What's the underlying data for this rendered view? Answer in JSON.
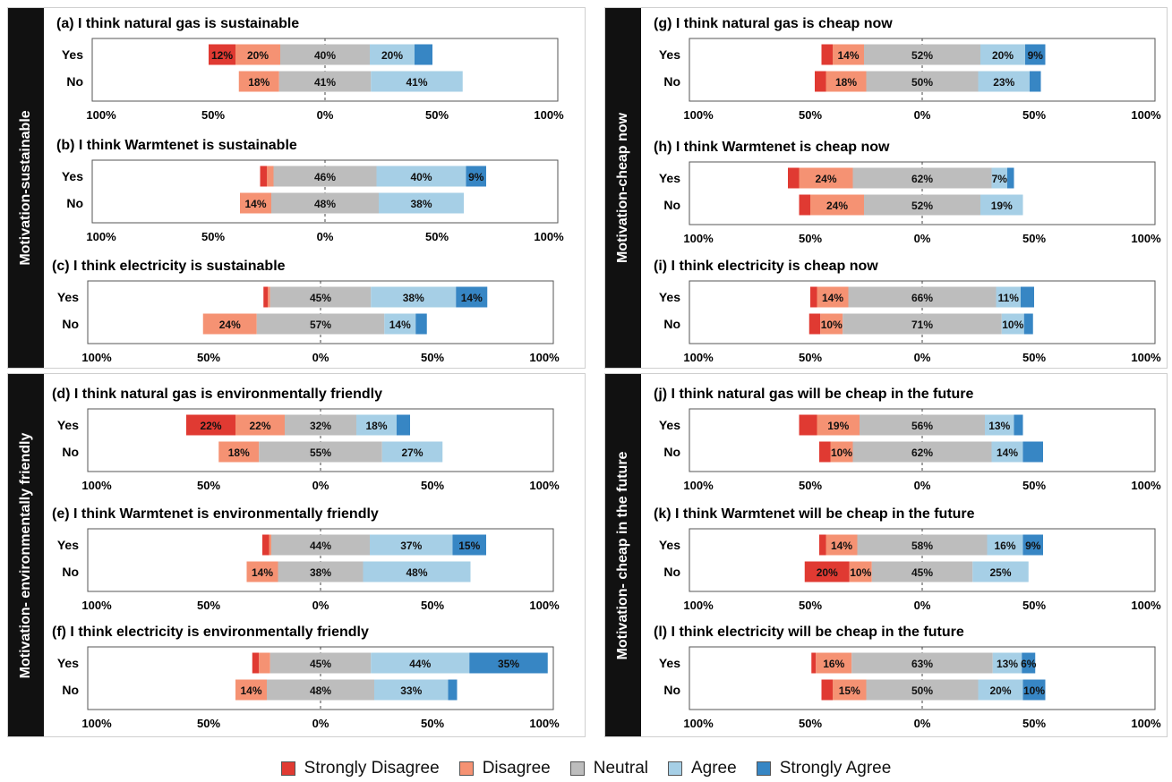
{
  "legend": [
    {
      "label": "Strongly Disagree",
      "color": "#e03a32"
    },
    {
      "label": "Disagree",
      "color": "#f59273"
    },
    {
      "label": "Neutral",
      "color": "#bdbdbd"
    },
    {
      "label": "Agree",
      "color": "#a6cfe6"
    },
    {
      "label": "Strongly Agree",
      "color": "#3786c4"
    }
  ],
  "sections": [
    {
      "label": "Motivation-sustainable"
    },
    {
      "label": "Motivation- environmentally friendly"
    },
    {
      "label": "Motivation-cheap now"
    },
    {
      "label": "Motivation- cheap in the future"
    }
  ],
  "chart_data": [
    {
      "id": "a",
      "type": "bar",
      "title": "(a) I think natural gas is sustainable",
      "categories": [
        "Yes",
        "No"
      ],
      "xlim": [
        -100,
        100
      ],
      "ticks": [
        "100%",
        "50%",
        "0%",
        "50%",
        "100%"
      ],
      "series": [
        {
          "name": "Strongly Disagree",
          "values": [
            12,
            0
          ],
          "labels": [
            "12%",
            ""
          ]
        },
        {
          "name": "Disagree",
          "values": [
            20,
            18
          ],
          "labels": [
            "20%",
            "18%"
          ]
        },
        {
          "name": "Neutral",
          "values": [
            40,
            41
          ],
          "labels": [
            "40%",
            "41%"
          ]
        },
        {
          "name": "Agree",
          "values": [
            20,
            41
          ],
          "labels": [
            "20%",
            "41%"
          ]
        },
        {
          "name": "Strongly Agree",
          "values": [
            8,
            0
          ],
          "labels": [
            "",
            ""
          ]
        }
      ]
    },
    {
      "id": "b",
      "type": "bar",
      "title": "(b) I think Warmtenet is sustainable",
      "categories": [
        "Yes",
        "No"
      ],
      "xlim": [
        -100,
        100
      ],
      "ticks": [
        "100%",
        "50%",
        "0%",
        "50%",
        "100%"
      ],
      "series": [
        {
          "name": "Strongly Disagree",
          "values": [
            3,
            0
          ],
          "labels": [
            "",
            ""
          ]
        },
        {
          "name": "Disagree",
          "values": [
            3,
            14
          ],
          "labels": [
            "",
            "14%"
          ]
        },
        {
          "name": "Neutral",
          "values": [
            46,
            48
          ],
          "labels": [
            "46%",
            "48%"
          ]
        },
        {
          "name": "Agree",
          "values": [
            40,
            38
          ],
          "labels": [
            "40%",
            "38%"
          ]
        },
        {
          "name": "Strongly Agree",
          "values": [
            9,
            0
          ],
          "labels": [
            "9%",
            ""
          ]
        }
      ]
    },
    {
      "id": "c",
      "type": "bar",
      "title": "(c) I think electricity is sustainable",
      "categories": [
        "Yes",
        "No"
      ],
      "xlim": [
        -100,
        100
      ],
      "ticks": [
        "100%",
        "50%",
        "0%",
        "50%",
        "100%"
      ],
      "series": [
        {
          "name": "Strongly Disagree",
          "values": [
            2,
            0
          ],
          "labels": [
            "",
            ""
          ]
        },
        {
          "name": "Disagree",
          "values": [
            1,
            24
          ],
          "labels": [
            "",
            "24%"
          ]
        },
        {
          "name": "Neutral",
          "values": [
            45,
            57
          ],
          "labels": [
            "45%",
            "57%"
          ]
        },
        {
          "name": "Agree",
          "values": [
            38,
            14
          ],
          "labels": [
            "38%",
            "14%"
          ]
        },
        {
          "name": "Strongly Agree",
          "values": [
            14,
            5
          ],
          "labels": [
            "14%",
            ""
          ]
        }
      ]
    },
    {
      "id": "d",
      "type": "bar",
      "title": "(d) I think natural gas is environmentally friendly",
      "categories": [
        "Yes",
        "No"
      ],
      "xlim": [
        -100,
        100
      ],
      "ticks": [
        "100%",
        "50%",
        "0%",
        "50%",
        "100%"
      ],
      "series": [
        {
          "name": "Strongly Disagree",
          "values": [
            22,
            0
          ],
          "labels": [
            "22%",
            ""
          ]
        },
        {
          "name": "Disagree",
          "values": [
            22,
            18
          ],
          "labels": [
            "22%",
            "18%"
          ]
        },
        {
          "name": "Neutral",
          "values": [
            32,
            55
          ],
          "labels": [
            "32%",
            "55%"
          ]
        },
        {
          "name": "Agree",
          "values": [
            18,
            27
          ],
          "labels": [
            "18%",
            "27%"
          ]
        },
        {
          "name": "Strongly Agree",
          "values": [
            6,
            0
          ],
          "labels": [
            "",
            ""
          ]
        }
      ]
    },
    {
      "id": "e",
      "type": "bar",
      "title": "(e) I think Warmtenet is environmentally friendly",
      "categories": [
        "Yes",
        "No"
      ],
      "xlim": [
        -100,
        100
      ],
      "ticks": [
        "100%",
        "50%",
        "0%",
        "50%",
        "100%"
      ],
      "series": [
        {
          "name": "Strongly Disagree",
          "values": [
            3,
            0
          ],
          "labels": [
            "",
            ""
          ]
        },
        {
          "name": "Disagree",
          "values": [
            1,
            14
          ],
          "labels": [
            "",
            "14%"
          ]
        },
        {
          "name": "Neutral",
          "values": [
            44,
            38
          ],
          "labels": [
            "44%",
            "38%"
          ]
        },
        {
          "name": "Agree",
          "values": [
            37,
            48
          ],
          "labels": [
            "37%",
            "48%"
          ]
        },
        {
          "name": "Strongly Agree",
          "values": [
            15,
            0
          ],
          "labels": [
            "15%",
            ""
          ]
        }
      ]
    },
    {
      "id": "f",
      "type": "bar",
      "title": "(f) I think electricity is environmentally friendly",
      "categories": [
        "Yes",
        "No"
      ],
      "xlim": [
        -100,
        100
      ],
      "ticks": [
        "100%",
        "50%",
        "0%",
        "50%",
        "100%"
      ],
      "series": [
        {
          "name": "Strongly Disagree",
          "values": [
            3,
            0
          ],
          "labels": [
            "",
            ""
          ]
        },
        {
          "name": "Disagree",
          "values": [
            5,
            14
          ],
          "labels": [
            "",
            "14%"
          ]
        },
        {
          "name": "Neutral",
          "values": [
            45,
            48
          ],
          "labels": [
            "45%",
            "48%"
          ]
        },
        {
          "name": "Agree",
          "values": [
            44,
            33
          ],
          "labels": [
            "44%",
            "33%"
          ]
        },
        {
          "name": "Strongly Agree",
          "values": [
            35,
            4
          ],
          "labels": [
            "35%",
            ""
          ]
        }
      ]
    },
    {
      "id": "g",
      "type": "bar",
      "title": "(g) I think natural gas is cheap now",
      "categories": [
        "Yes",
        "No"
      ],
      "xlim": [
        -100,
        100
      ],
      "ticks": [
        "100%",
        "50%",
        "0%",
        "50%",
        "100%"
      ],
      "series": [
        {
          "name": "Strongly Disagree",
          "values": [
            5,
            5
          ],
          "labels": [
            "",
            ""
          ]
        },
        {
          "name": "Disagree",
          "values": [
            14,
            18
          ],
          "labels": [
            "14%",
            "18%"
          ]
        },
        {
          "name": "Neutral",
          "values": [
            52,
            50
          ],
          "labels": [
            "52%",
            "50%"
          ]
        },
        {
          "name": "Agree",
          "values": [
            20,
            23
          ],
          "labels": [
            "20%",
            "23%"
          ]
        },
        {
          "name": "Strongly Agree",
          "values": [
            9,
            5
          ],
          "labels": [
            "9%",
            ""
          ]
        }
      ]
    },
    {
      "id": "h",
      "type": "bar",
      "title": "(h) I think Warmtenet is cheap now",
      "categories": [
        "Yes",
        "No"
      ],
      "xlim": [
        -100,
        100
      ],
      "ticks": [
        "100%",
        "50%",
        "0%",
        "50%",
        "100%"
      ],
      "series": [
        {
          "name": "Strongly Disagree",
          "values": [
            5,
            5
          ],
          "labels": [
            "",
            ""
          ]
        },
        {
          "name": "Disagree",
          "values": [
            24,
            24
          ],
          "labels": [
            "24%",
            "24%"
          ]
        },
        {
          "name": "Neutral",
          "values": [
            62,
            52
          ],
          "labels": [
            "62%",
            "52%"
          ]
        },
        {
          "name": "Agree",
          "values": [
            7,
            19
          ],
          "labels": [
            "7%",
            "19%"
          ]
        },
        {
          "name": "Strongly Agree",
          "values": [
            3,
            0
          ],
          "labels": [
            "",
            ""
          ]
        }
      ]
    },
    {
      "id": "i",
      "type": "bar",
      "title": "(i) I think electricity is cheap now",
      "categories": [
        "Yes",
        "No"
      ],
      "xlim": [
        -100,
        100
      ],
      "ticks": [
        "100%",
        "50%",
        "0%",
        "50%",
        "100%"
      ],
      "series": [
        {
          "name": "Strongly Disagree",
          "values": [
            3,
            5
          ],
          "labels": [
            "",
            ""
          ]
        },
        {
          "name": "Disagree",
          "values": [
            14,
            10
          ],
          "labels": [
            "14%",
            "10%"
          ]
        },
        {
          "name": "Neutral",
          "values": [
            66,
            71
          ],
          "labels": [
            "66%",
            "71%"
          ]
        },
        {
          "name": "Agree",
          "values": [
            11,
            10
          ],
          "labels": [
            "11%",
            "10%"
          ]
        },
        {
          "name": "Strongly Agree",
          "values": [
            6,
            4
          ],
          "labels": [
            "",
            ""
          ]
        }
      ]
    },
    {
      "id": "j",
      "type": "bar",
      "title": "(j) I think natural gas will be cheap in the future",
      "categories": [
        "Yes",
        "No"
      ],
      "xlim": [
        -100,
        100
      ],
      "ticks": [
        "100%",
        "50%",
        "0%",
        "50%",
        "100%"
      ],
      "series": [
        {
          "name": "Strongly Disagree",
          "values": [
            8,
            5
          ],
          "labels": [
            "",
            ""
          ]
        },
        {
          "name": "Disagree",
          "values": [
            19,
            10
          ],
          "labels": [
            "19%",
            "10%"
          ]
        },
        {
          "name": "Neutral",
          "values": [
            56,
            62
          ],
          "labels": [
            "56%",
            "62%"
          ]
        },
        {
          "name": "Agree",
          "values": [
            13,
            14
          ],
          "labels": [
            "13%",
            "14%"
          ]
        },
        {
          "name": "Strongly Agree",
          "values": [
            4,
            9
          ],
          "labels": [
            "",
            ""
          ]
        }
      ]
    },
    {
      "id": "k",
      "type": "bar",
      "title": "(k) I think Warmtenet will be cheap in the future",
      "categories": [
        "Yes",
        "No"
      ],
      "xlim": [
        -100,
        100
      ],
      "ticks": [
        "100%",
        "50%",
        "0%",
        "50%",
        "100%"
      ],
      "series": [
        {
          "name": "Strongly Disagree",
          "values": [
            3,
            20
          ],
          "labels": [
            "",
            "20%"
          ]
        },
        {
          "name": "Disagree",
          "values": [
            14,
            10
          ],
          "labels": [
            "14%",
            "10%"
          ]
        },
        {
          "name": "Neutral",
          "values": [
            58,
            45
          ],
          "labels": [
            "58%",
            "45%"
          ]
        },
        {
          "name": "Agree",
          "values": [
            16,
            25
          ],
          "labels": [
            "16%",
            "25%"
          ]
        },
        {
          "name": "Strongly Agree",
          "values": [
            9,
            0
          ],
          "labels": [
            "9%",
            ""
          ]
        }
      ]
    },
    {
      "id": "l",
      "type": "bar",
      "title": "(l) I think electricity will be cheap in the future",
      "categories": [
        "Yes",
        "No"
      ],
      "xlim": [
        -100,
        100
      ],
      "ticks": [
        "100%",
        "50%",
        "0%",
        "50%",
        "100%"
      ],
      "series": [
        {
          "name": "Strongly Disagree",
          "values": [
            2,
            5
          ],
          "labels": [
            "",
            ""
          ]
        },
        {
          "name": "Disagree",
          "values": [
            16,
            15
          ],
          "labels": [
            "16%",
            "15%"
          ]
        },
        {
          "name": "Neutral",
          "values": [
            63,
            50
          ],
          "labels": [
            "63%",
            "50%"
          ]
        },
        {
          "name": "Agree",
          "values": [
            13,
            20
          ],
          "labels": [
            "13%",
            "20%"
          ]
        },
        {
          "name": "Strongly Agree",
          "values": [
            6,
            10
          ],
          "labels": [
            "6%",
            "10%"
          ]
        }
      ]
    }
  ]
}
